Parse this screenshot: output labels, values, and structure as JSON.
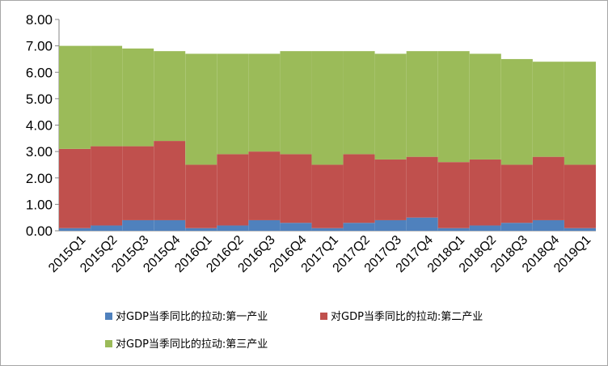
{
  "chart_data": {
    "type": "bar",
    "stacked": true,
    "categories": [
      "2015Q1",
      "2015Q2",
      "2015Q3",
      "2015Q4",
      "2016Q1",
      "2016Q2",
      "2016Q3",
      "2016Q4",
      "2017Q1",
      "2017Q2",
      "2017Q3",
      "2017Q4",
      "2018Q1",
      "2018Q2",
      "2018Q3",
      "2018Q4",
      "2019Q1"
    ],
    "series": [
      {
        "name": "对GDP当季同比的拉动:第一产业",
        "color": "#4f81bd",
        "values": [
          0.1,
          0.2,
          0.4,
          0.4,
          0.1,
          0.2,
          0.4,
          0.3,
          0.1,
          0.3,
          0.4,
          0.5,
          0.1,
          0.2,
          0.3,
          0.4,
          0.1
        ]
      },
      {
        "name": "对GDP当季同比的拉动:第二产业",
        "color": "#c0504d",
        "values": [
          3.0,
          3.0,
          2.8,
          3.0,
          2.4,
          2.7,
          2.6,
          2.6,
          2.4,
          2.6,
          2.3,
          2.3,
          2.5,
          2.5,
          2.2,
          2.4,
          2.4
        ]
      },
      {
        "name": "对GDP当季同比的拉动:第三产业",
        "color": "#9bbb59",
        "values": [
          3.9,
          3.8,
          3.7,
          3.4,
          4.2,
          3.8,
          3.7,
          3.9,
          4.3,
          3.9,
          4.0,
          4.0,
          4.2,
          4.0,
          4.0,
          3.6,
          3.9
        ]
      }
    ],
    "yticks": [
      "0.00",
      "1.00",
      "2.00",
      "3.00",
      "4.00",
      "5.00",
      "6.00",
      "7.00",
      "8.00"
    ],
    "ylim": [
      0,
      8
    ],
    "grid": false,
    "legend_position": "bottom"
  }
}
